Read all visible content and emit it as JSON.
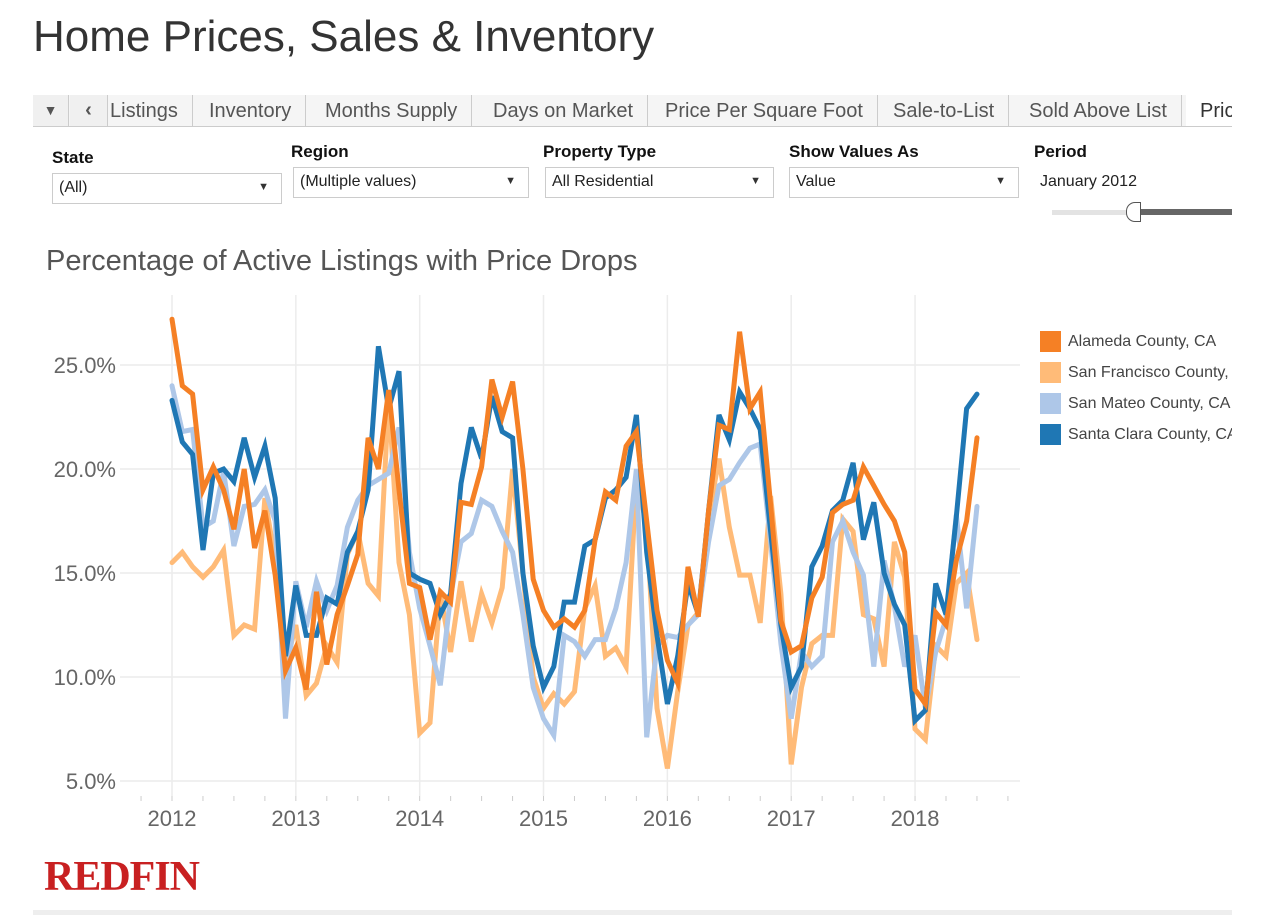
{
  "header": {
    "title": "Home Prices, Sales & Inventory"
  },
  "tabs": {
    "items": [
      {
        "label": "Listings"
      },
      {
        "label": "Inventory"
      },
      {
        "label": "Months Supply"
      },
      {
        "label": "Days on Market"
      },
      {
        "label": "Price Per Square Foot"
      },
      {
        "label": "Sale-to-List"
      },
      {
        "label": "Sold Above List"
      },
      {
        "label": "Pric"
      }
    ],
    "active": "Pric",
    "dropdown_icon": "triangle-down",
    "back_icon": "chevron-left"
  },
  "filters": {
    "state": {
      "label": "State",
      "value": "(All)"
    },
    "region": {
      "label": "Region",
      "value": "(Multiple values)"
    },
    "property_type": {
      "label": "Property Type",
      "value": "All Residential"
    },
    "show_values_as": {
      "label": "Show Values As",
      "value": "Value"
    },
    "period": {
      "label": "Period",
      "value": "January 2012",
      "slider_position": 0.45
    }
  },
  "footer": {
    "logo": "REDFIN"
  },
  "chart_data": {
    "type": "line",
    "title": "Percentage of Active Listings with Price Drops",
    "xlabel": "",
    "ylabel": "",
    "x_ticks": [
      "2012",
      "2013",
      "2014",
      "2015",
      "2016",
      "2017",
      "2018"
    ],
    "y_ticks": [
      "5.0%",
      "10.0%",
      "15.0%",
      "20.0%",
      "25.0%"
    ],
    "ylim": [
      4.5,
      28
    ],
    "grid": true,
    "legend": "right",
    "x": [
      "2012-01",
      "2012-02",
      "2012-03",
      "2012-04",
      "2012-05",
      "2012-06",
      "2012-07",
      "2012-08",
      "2012-09",
      "2012-10",
      "2012-11",
      "2012-12",
      "2013-01",
      "2013-02",
      "2013-03",
      "2013-04",
      "2013-05",
      "2013-06",
      "2013-07",
      "2013-08",
      "2013-09",
      "2013-10",
      "2013-11",
      "2013-12",
      "2014-01",
      "2014-02",
      "2014-03",
      "2014-04",
      "2014-05",
      "2014-06",
      "2014-07",
      "2014-08",
      "2014-09",
      "2014-10",
      "2014-11",
      "2014-12",
      "2015-01",
      "2015-02",
      "2015-03",
      "2015-04",
      "2015-05",
      "2015-06",
      "2015-07",
      "2015-08",
      "2015-09",
      "2015-10",
      "2015-11",
      "2015-12",
      "2016-01",
      "2016-02",
      "2016-03",
      "2016-04",
      "2016-05",
      "2016-06",
      "2016-07",
      "2016-08",
      "2016-09",
      "2016-10",
      "2016-11",
      "2016-12",
      "2017-01",
      "2017-02",
      "2017-03",
      "2017-04",
      "2017-05",
      "2017-06",
      "2017-07",
      "2017-08",
      "2017-09",
      "2017-10",
      "2017-11",
      "2017-12",
      "2018-01",
      "2018-02",
      "2018-03",
      "2018-04",
      "2018-05",
      "2018-06",
      "2018-07"
    ],
    "series": [
      {
        "name": "Alameda County, CA",
        "color": "#f58025",
        "values": [
          27.2,
          24.0,
          23.6,
          19.0,
          20.1,
          19.0,
          17.1,
          20.0,
          16.2,
          18.0,
          14.9,
          10.3,
          11.4,
          9.4,
          14.1,
          10.6,
          13.0,
          14.4,
          15.9,
          21.5,
          20.0,
          23.8,
          19.0,
          14.5,
          14.3,
          11.8,
          14.1,
          13.6,
          18.4,
          18.3,
          20.1,
          24.3,
          22.5,
          24.2,
          20.0,
          14.7,
          13.2,
          12.4,
          12.8,
          12.4,
          13.2,
          16.6,
          18.9,
          18.5,
          21.1,
          21.8,
          17.5,
          13.2,
          10.8,
          9.7,
          15.3,
          12.9,
          18.0,
          22.1,
          21.9,
          26.6,
          22.9,
          23.7,
          18.3,
          12.7,
          11.2,
          11.5,
          13.8,
          14.8,
          17.9,
          18.3,
          18.5,
          20.1,
          19.2,
          18.3,
          17.5,
          16.0,
          9.4,
          8.7,
          13.1,
          12.5,
          15.6,
          17.5,
          21.5
        ]
      },
      {
        "name": "San Francisco County, CA",
        "color": "#ffbb78",
        "values": [
          15.5,
          16.0,
          15.3,
          14.8,
          15.3,
          16.1,
          12.0,
          12.5,
          12.3,
          18.6,
          15.6,
          10.5,
          12.5,
          9.1,
          9.7,
          11.5,
          10.7,
          15.9,
          17.0,
          14.5,
          13.9,
          23.4,
          15.5,
          13.0,
          7.3,
          7.8,
          14.0,
          11.2,
          14.6,
          11.7,
          14.0,
          12.6,
          14.3,
          20.0,
          15.0,
          10.0,
          8.5,
          9.2,
          8.7,
          9.3,
          13.3,
          14.4,
          11.0,
          11.4,
          10.5,
          19.5,
          17.3,
          8.5,
          5.6,
          9.3,
          12.5,
          13.1,
          17.7,
          20.5,
          17.2,
          14.9,
          14.9,
          12.6,
          18.7,
          14.0,
          5.8,
          9.5,
          11.6,
          12.0,
          12.0,
          17.6,
          17.0,
          13.0,
          12.8,
          10.5,
          16.5,
          14.8,
          7.5,
          7.0,
          11.5,
          11.0,
          14.5,
          15.0,
          11.8
        ]
      },
      {
        "name": "San Mateo County, CA",
        "color": "#aec7e8",
        "values": [
          24.0,
          21.8,
          21.9,
          17.2,
          17.5,
          19.9,
          16.3,
          18.2,
          18.3,
          19.0,
          17.5,
          8.0,
          14.6,
          12.4,
          14.6,
          13.2,
          14.4,
          17.2,
          18.5,
          19.2,
          19.5,
          19.8,
          22.0,
          16.0,
          13.3,
          11.5,
          9.6,
          13.9,
          16.5,
          16.9,
          18.5,
          18.2,
          17.0,
          16.0,
          13.0,
          9.5,
          8.0,
          7.2,
          12.0,
          11.7,
          11.0,
          11.8,
          11.8,
          13.3,
          15.5,
          20.0,
          7.1,
          11.5,
          12.0,
          11.9,
          12.5,
          13.0,
          16.5,
          19.2,
          19.5,
          20.3,
          21.0,
          21.2,
          16.5,
          11.6,
          8.0,
          11.2,
          10.5,
          11.0,
          16.5,
          17.5,
          16.0,
          14.9,
          10.5,
          15.6,
          13.4,
          10.5,
          12.0,
          8.5,
          11.2,
          12.8,
          17.8,
          13.3,
          18.2
        ]
      },
      {
        "name": "Santa Clara County, CA",
        "color": "#1f77b4",
        "values": [
          23.3,
          21.3,
          20.7,
          16.1,
          19.8,
          20.0,
          19.4,
          21.5,
          19.6,
          21.1,
          18.6,
          11.0,
          14.4,
          12.0,
          12.0,
          13.8,
          13.5,
          16.0,
          17.0,
          19.0,
          25.9,
          22.9,
          24.7,
          15.0,
          14.7,
          14.5,
          13.0,
          14.0,
          19.3,
          22.0,
          20.5,
          23.5,
          21.8,
          21.5,
          15.0,
          11.5,
          9.5,
          10.5,
          13.6,
          13.6,
          16.3,
          16.6,
          18.6,
          19.0,
          19.6,
          22.6,
          16.0,
          12.0,
          8.7,
          11.0,
          14.5,
          13.0,
          18.0,
          22.6,
          21.4,
          23.7,
          22.9,
          21.9,
          17.0,
          12.5,
          9.5,
          10.5,
          15.3,
          16.3,
          18.0,
          18.5,
          20.3,
          16.6,
          18.4,
          15.0,
          13.5,
          12.5,
          7.9,
          8.4,
          14.5,
          13.0,
          17.7,
          22.9,
          23.6
        ]
      }
    ]
  }
}
